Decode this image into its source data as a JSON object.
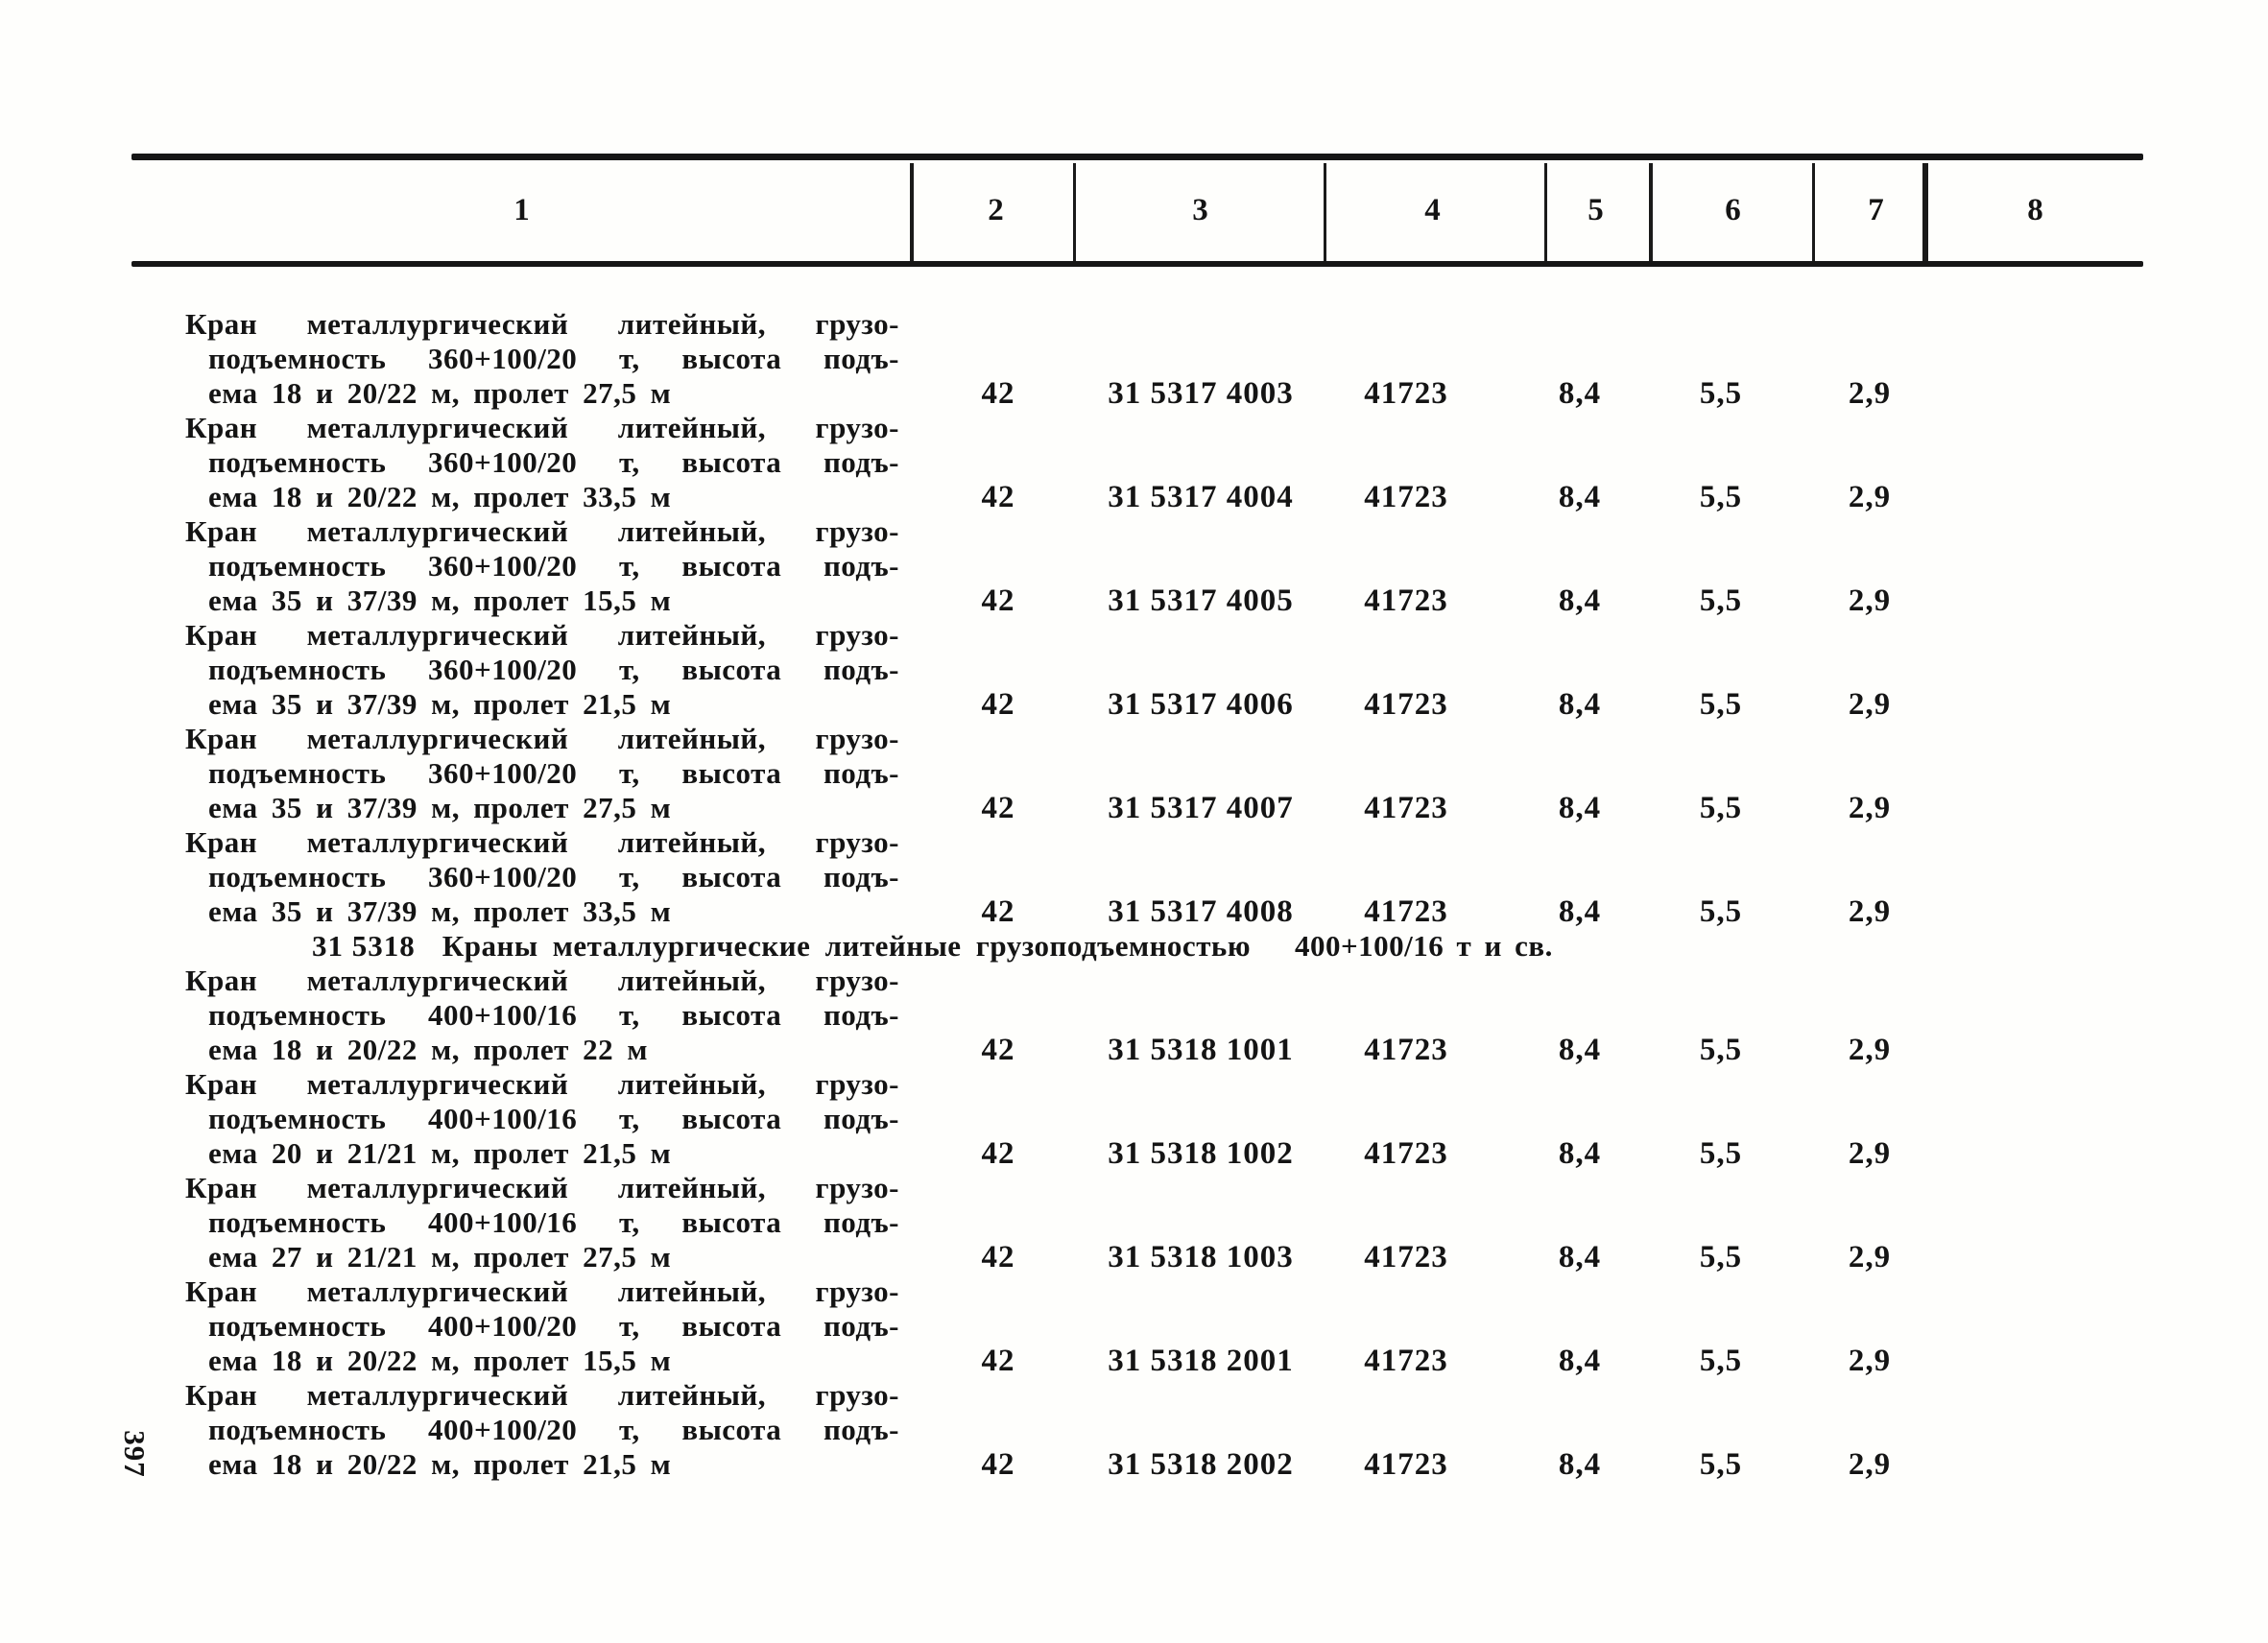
{
  "page": {
    "number": "397"
  },
  "table": {
    "header_columns": [
      "1",
      "2",
      "3",
      "4",
      "5",
      "6",
      "7",
      "8"
    ],
    "entries": [
      {
        "type": "item",
        "desc_lines": [
          "Кран металлургический литейный, грузо-",
          "подъемность 360+100/20 т, высота подъ-",
          "ема 18 и 20/22 м, пролет 27,5 м"
        ],
        "c2": "42",
        "c3": "31 5317 4003",
        "c4": "41723",
        "c5": "8,4",
        "c6": "5,5",
        "c7": "2,9"
      },
      {
        "type": "item",
        "desc_lines": [
          "Кран металлургический литейный, грузо-",
          "подъемность 360+100/20 т, высота подъ-",
          "ема 18 и 20/22 м, пролет 33,5 м"
        ],
        "c2": "42",
        "c3": "31 5317 4004",
        "c4": "41723",
        "c5": "8,4",
        "c6": "5,5",
        "c7": "2,9"
      },
      {
        "type": "item",
        "desc_lines": [
          "Кран металлургический литейный, грузо-",
          "подъемность 360+100/20 т, высота подъ-",
          "ема 35 и 37/39 м, пролет 15,5 м"
        ],
        "c2": "42",
        "c3": "31 5317 4005",
        "c4": "41723",
        "c5": "8,4",
        "c6": "5,5",
        "c7": "2,9"
      },
      {
        "type": "item",
        "desc_lines": [
          "Кран металлургический литейный, грузо-",
          "подъемность 360+100/20 т, высота подъ-",
          "ема 35 и 37/39 м, пролет 21,5 м"
        ],
        "c2": "42",
        "c3": "31 5317 4006",
        "c4": "41723",
        "c5": "8,4",
        "c6": "5,5",
        "c7": "2,9"
      },
      {
        "type": "item",
        "desc_lines": [
          "Кран металлургический литейный, грузо-",
          "подъемность 360+100/20 т, высота подъ-",
          "ема 35 и 37/39 м, пролет 27,5 м"
        ],
        "c2": "42",
        "c3": "31 5317 4007",
        "c4": "41723",
        "c5": "8,4",
        "c6": "5,5",
        "c7": "2,9"
      },
      {
        "type": "item",
        "desc_lines": [
          "Кран металлургический литейный, грузо-",
          "подъемность 360+100/20 т, высота подъ-",
          "ема 35 и 37/39 м, пролет 33,5 м"
        ],
        "c2": "42",
        "c3": "31 5317 4008",
        "c4": "41723",
        "c5": "8,4",
        "c6": "5,5",
        "c7": "2,9"
      },
      {
        "type": "section",
        "code": "31 5318",
        "title": "Краны металлургические литейные грузоподъемностью",
        "capacity": "400+100/16 т и св."
      },
      {
        "type": "item",
        "desc_lines": [
          "Кран металлургический литейный, грузо-",
          "подъемность 400+100/16 т, высота подъ-",
          "ема 18 и 20/22 м, пролет 22 м"
        ],
        "c2": "42",
        "c3": "31 5318 1001",
        "c4": "41723",
        "c5": "8,4",
        "c6": "5,5",
        "c7": "2,9"
      },
      {
        "type": "item",
        "desc_lines": [
          "Кран металлургический литейный, грузо-",
          "подъемность 400+100/16 т, высота подъ-",
          "ема 20 и 21/21 м, пролет 21,5 м"
        ],
        "c2": "42",
        "c3": "31 5318 1002",
        "c4": "41723",
        "c5": "8,4",
        "c6": "5,5",
        "c7": "2,9"
      },
      {
        "type": "item",
        "desc_lines": [
          "Кран металлургический литейный, грузо-",
          "подъемность 400+100/16 т, высота подъ-",
          "ема 27 и 21/21 м, пролет 27,5 м"
        ],
        "c2": "42",
        "c3": "31 5318 1003",
        "c4": "41723",
        "c5": "8,4",
        "c6": "5,5",
        "c7": "2,9"
      },
      {
        "type": "item",
        "desc_lines": [
          "Кран металлургический литейный, грузо-",
          "подъемность 400+100/20 т, высота подъ-",
          "ема 18 и 20/22 м, пролет 15,5 м"
        ],
        "c2": "42",
        "c3": "31 5318 2001",
        "c4": "41723",
        "c5": "8,4",
        "c6": "5,5",
        "c7": "2,9"
      },
      {
        "type": "item",
        "desc_lines": [
          "Кран металлургический литейный, грузо-",
          "подъемность 400+100/20 т, высота подъ-",
          "ема 18 и 20/22 м, пролет 21,5 м"
        ],
        "c2": "42",
        "c3": "31 5318 2002",
        "c4": "41723",
        "c5": "8,4",
        "c6": "5,5",
        "c7": "2,9"
      }
    ]
  }
}
